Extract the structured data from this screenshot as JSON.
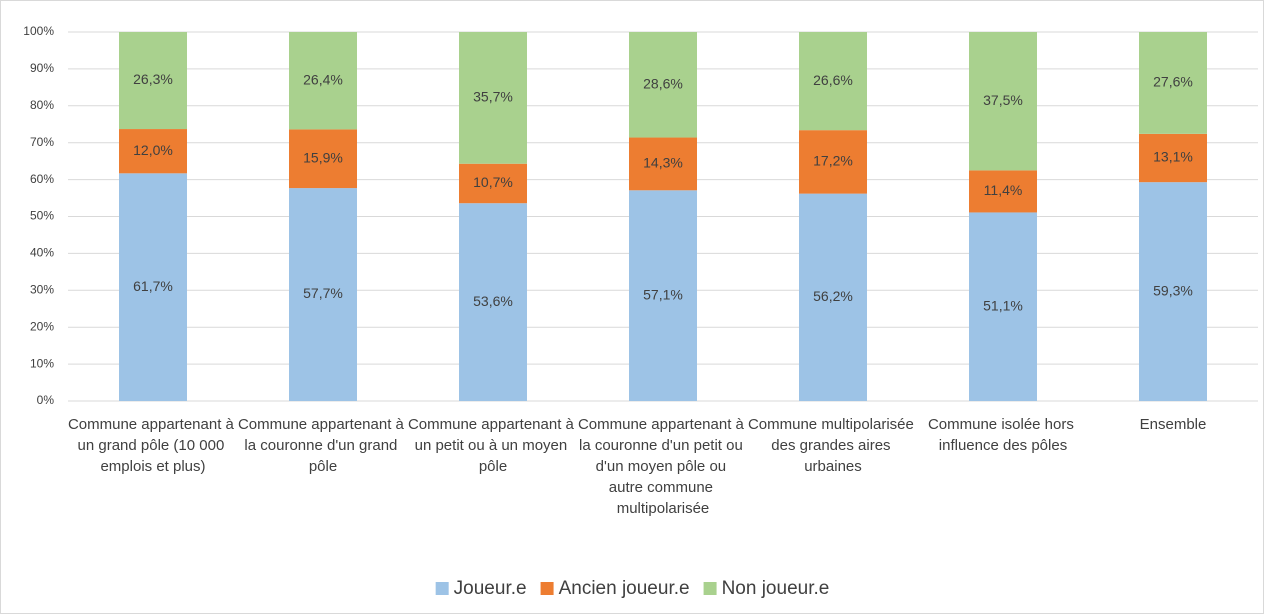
{
  "chart_data": {
    "type": "stacked_bar",
    "categories": [
      "Commune appartenant à un grand pôle (10 000 emplois et plus)",
      "Commune appartenant à la couronne d'un grand pôle",
      "Commune appartenant à un petit ou à un moyen pôle",
      "Commune appartenant à la couronne d'un petit ou d'un moyen pôle ou autre commune multipolarisée",
      "Commune multipolarisée des grandes aires urbaines",
      "Commune isolée hors influence des pôles",
      "Ensemble"
    ],
    "series": [
      {
        "name": "Joueur.e",
        "color": "#9dc3e6",
        "values": [
          61.7,
          57.7,
          53.6,
          57.1,
          56.2,
          51.1,
          59.3
        ],
        "value_labels": [
          "61,7%",
          "57,7%",
          "53,6%",
          "57,1%",
          "56,2%",
          "51,1%",
          "59,3%"
        ]
      },
      {
        "name": "Ancien joueur.e",
        "color": "#ed7d31",
        "values": [
          12.0,
          15.9,
          10.7,
          14.3,
          17.2,
          11.4,
          13.1
        ],
        "value_labels": [
          "12,0%",
          "15,9%",
          "10,7%",
          "14,3%",
          "17,2%",
          "11,4%",
          "13,1%"
        ]
      },
      {
        "name": "Non joueur.e",
        "color": "#a9d18e",
        "values": [
          26.3,
          26.4,
          35.7,
          28.6,
          26.6,
          37.5,
          27.6
        ],
        "value_labels": [
          "26,3%",
          "26,4%",
          "35,7%",
          "28,6%",
          "26,6%",
          "37,5%",
          "27,6%"
        ]
      }
    ],
    "ylim": [
      0,
      100
    ],
    "yticks": [
      {
        "value": 0,
        "label": "0%"
      },
      {
        "value": 10,
        "label": "10%"
      },
      {
        "value": 20,
        "label": "20%"
      },
      {
        "value": 30,
        "label": "30%"
      },
      {
        "value": 40,
        "label": "40%"
      },
      {
        "value": 50,
        "label": "50%"
      },
      {
        "value": 60,
        "label": "60%"
      },
      {
        "value": 70,
        "label": "70%"
      },
      {
        "value": 80,
        "label": "80%"
      },
      {
        "value": 90,
        "label": "90%"
      },
      {
        "value": 100,
        "label": "100%"
      }
    ],
    "grid": true,
    "legend": "bottom"
  }
}
